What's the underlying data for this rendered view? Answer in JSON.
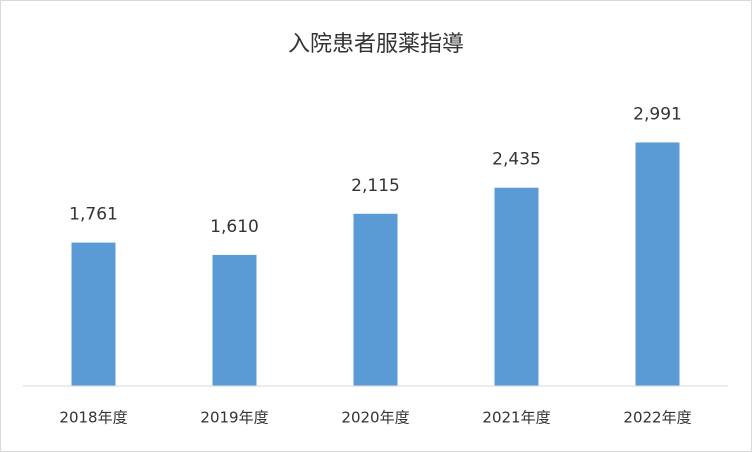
{
  "chart_data": {
    "type": "bar",
    "title": "入院患者服薬指導",
    "categories": [
      "2018年度",
      "2019年度",
      "2020年度",
      "2021年度",
      "2022年度"
    ],
    "values": [
      1761,
      1610,
      2115,
      2435,
      2991
    ],
    "value_labels": [
      "1,761",
      "1,610",
      "2,115",
      "2,435",
      "2,991"
    ],
    "color": "#5b9bd5",
    "ylim": [
      0,
      3500
    ]
  }
}
